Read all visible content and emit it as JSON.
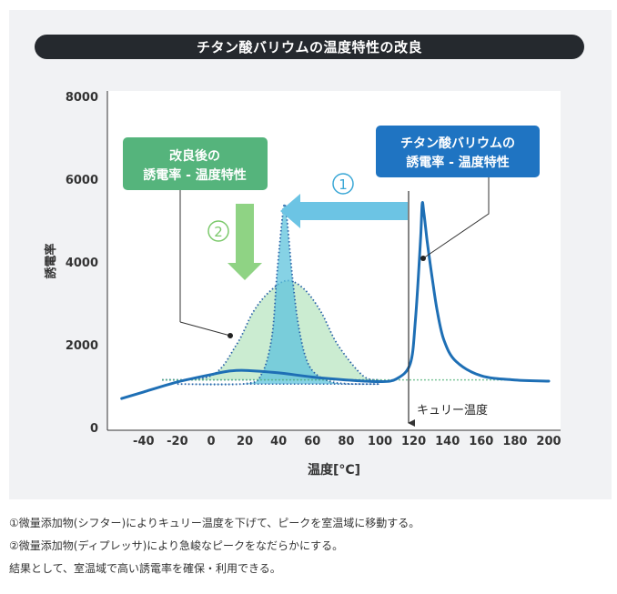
{
  "title": "チタン酸バリウムの温度特性の改良",
  "notes": [
    "①微量添加物(シフター)によりキュリー温度を下げて、ピークを室温域に移動する。",
    "②微量添加物(ディプレッサ)により急峻なピークをなだらかにする。",
    "結果として、室温域で高い誘電率を確保・利用できる。"
  ],
  "callouts": {
    "improved": [
      "改良後の",
      "誘電率 - 温度特性"
    ],
    "original": [
      "チタン酸バリウムの",
      "誘電率 - 温度特性"
    ],
    "curie": "キュリー温度",
    "step1": "1",
    "step2": "2"
  },
  "colors": {
    "original_curve": "#1e6fb5",
    "improved_box": "#55b47c",
    "original_box": "#1f74c2",
    "arrow_blue": "#6cc4e4",
    "arrow_green": "#8fd384"
  },
  "chart_data": {
    "type": "line",
    "title": "",
    "xlabel": "温度[°C]",
    "ylabel": "誘電率",
    "xlim": [
      -60,
      205
    ],
    "ylim": [
      0,
      8000
    ],
    "xticks": [
      "-40",
      "-20",
      "0",
      "20",
      "40",
      "60",
      "80",
      "100",
      "120",
      "140",
      "160",
      "180",
      "200"
    ],
    "yticks": [
      "8000",
      "6000",
      "4000",
      "2000",
      "0"
    ],
    "curie_temperature": 125,
    "series": [
      {
        "name": "",
        "style": "solid",
        "color": "#1e6fb5",
        "x": [
          -53,
          -40,
          -20,
          0,
          10,
          20,
          40,
          60,
          80,
          100,
          110,
          118,
          121,
          124,
          125,
          126,
          128,
          131,
          134,
          138,
          145,
          160,
          180,
          200
        ],
        "y": [
          700,
          860,
          1100,
          1280,
          1360,
          1380,
          1320,
          1220,
          1150,
          1110,
          1180,
          1550,
          2600,
          4500,
          5400,
          5200,
          4500,
          3600,
          2800,
          2100,
          1600,
          1250,
          1150,
          1120
        ]
      },
      {
        "name": "",
        "style": "dotted-fill",
        "fill": "#b9e6c2",
        "x": [
          -29,
          0,
          15,
          25,
          35,
          45,
          55,
          65,
          75,
          90,
          100
        ],
        "y": [
          1150,
          1250,
          2000,
          2800,
          3300,
          3550,
          3350,
          2800,
          2000,
          1250,
          1150
        ]
      },
      {
        "name": "",
        "style": "dotted-fill",
        "fill": "#5ec3dc",
        "x": [
          -20,
          20,
          30,
          36,
          39,
          42,
          43.5,
          45,
          48,
          52,
          58,
          68,
          80,
          100
        ],
        "y": [
          1050,
          1060,
          1300,
          2200,
          3700,
          5000,
          5400,
          5000,
          3700,
          2400,
          1500,
          1150,
          1060,
          1050
        ]
      }
    ]
  }
}
